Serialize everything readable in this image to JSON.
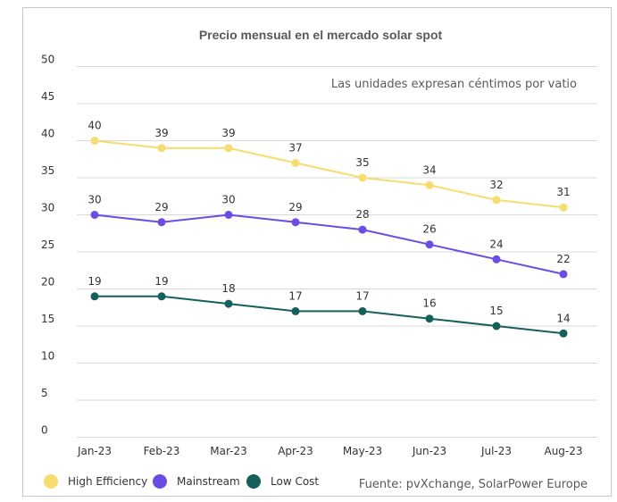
{
  "chart_data": {
    "type": "line",
    "title": "Precio mensual en el mercado solar spot",
    "annotation": "Las unidades expresan céntimos por vatio",
    "source": "Fuente: pvXchange, SolarPower Europe",
    "categories": [
      "Jan-23",
      "Feb-23",
      "Mar-23",
      "Apr-23",
      "May-23",
      "Jun-23",
      "Jul-23",
      "Aug-23"
    ],
    "y_ticks": [
      "0",
      "5",
      "10",
      "15",
      "20",
      "25",
      "30",
      "35",
      "40",
      "45",
      "50"
    ],
    "ylim": [
      0,
      50
    ],
    "grid": true,
    "legend_position": "bottom-left",
    "series": [
      {
        "name": "High Efficiency",
        "color": "#f7dc6f",
        "values": [
          40,
          39,
          39,
          37,
          35,
          34,
          32,
          31
        ]
      },
      {
        "name": "Mainstream",
        "color": "#6c4ce6",
        "values": [
          30,
          29,
          30,
          29,
          28,
          26,
          24,
          22
        ]
      },
      {
        "name": "Low Cost",
        "color": "#14605a",
        "values": [
          19,
          19,
          18,
          17,
          17,
          16,
          15,
          14
        ]
      }
    ]
  }
}
